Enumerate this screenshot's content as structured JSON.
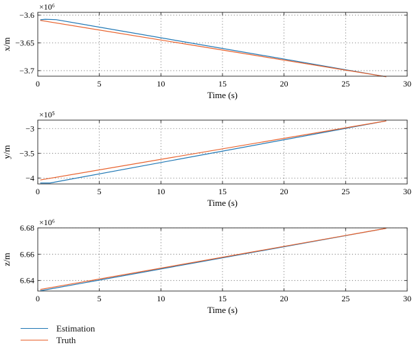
{
  "chart_data": [
    {
      "type": "line",
      "xlabel": "Time (s)",
      "ylabel": "x/m",
      "exponent_label": "×10⁶",
      "xlim": [
        0,
        30
      ],
      "ylim": [
        -3.71,
        -3.595
      ],
      "xticks": [
        0,
        5,
        10,
        15,
        20,
        25,
        30
      ],
      "yticks": [
        -3.6,
        -3.65,
        -3.7
      ],
      "ytick_labels": [
        "−3.6",
        "−3.65",
        "−3.7"
      ],
      "grid": true,
      "series": [
        {
          "name": "Estimation",
          "color": "#1f77b4",
          "x": [
            0.2,
            0.6,
            1.5,
            28.3
          ],
          "y": [
            -3.6085,
            -3.6075,
            -3.6082,
            -3.711
          ]
        },
        {
          "name": "Truth",
          "color": "#e8612c",
          "x": [
            0.2,
            28.3
          ],
          "y": [
            -3.6095,
            -3.711
          ]
        }
      ]
    },
    {
      "type": "line",
      "xlabel": "Time (s)",
      "ylabel": "y/m",
      "exponent_label": "×10⁵",
      "xlim": [
        0,
        30
      ],
      "ylim": [
        -4.12,
        -2.83
      ],
      "xticks": [
        0,
        5,
        10,
        15,
        20,
        25,
        30
      ],
      "yticks": [
        -3,
        -3.5,
        -4
      ],
      "ytick_labels": [
        "−3",
        "−3.5",
        "−4"
      ],
      "grid": true,
      "series": [
        {
          "name": "Estimation",
          "color": "#1f77b4",
          "x": [
            0.2,
            1.0,
            28.3
          ],
          "y": [
            -4.1,
            -4.1,
            -2.845
          ]
        },
        {
          "name": "Truth",
          "color": "#e8612c",
          "x": [
            0.2,
            28.3
          ],
          "y": [
            -4.04,
            -2.845
          ]
        }
      ]
    },
    {
      "type": "line",
      "xlabel": "Time (s)",
      "ylabel": "z/m",
      "exponent_label": "×10⁶",
      "xlim": [
        0,
        30
      ],
      "ylim": [
        6.632,
        6.68
      ],
      "xticks": [
        0,
        5,
        10,
        15,
        20,
        25,
        30
      ],
      "yticks": [
        6.64,
        6.66,
        6.68
      ],
      "ytick_labels": [
        "6.64",
        "6.66",
        "6.68"
      ],
      "grid": true,
      "series": [
        {
          "name": "Estimation",
          "color": "#1f77b4",
          "x": [
            0.2,
            28.3
          ],
          "y": [
            6.6322,
            6.6797
          ]
        },
        {
          "name": "Truth",
          "color": "#e8612c",
          "x": [
            0.2,
            28.3
          ],
          "y": [
            6.6332,
            6.6797
          ]
        }
      ]
    }
  ],
  "legend": {
    "items": [
      {
        "label": "Estimation",
        "color": "#1f77b4"
      },
      {
        "label": "Truth",
        "color": "#e8612c"
      }
    ]
  }
}
